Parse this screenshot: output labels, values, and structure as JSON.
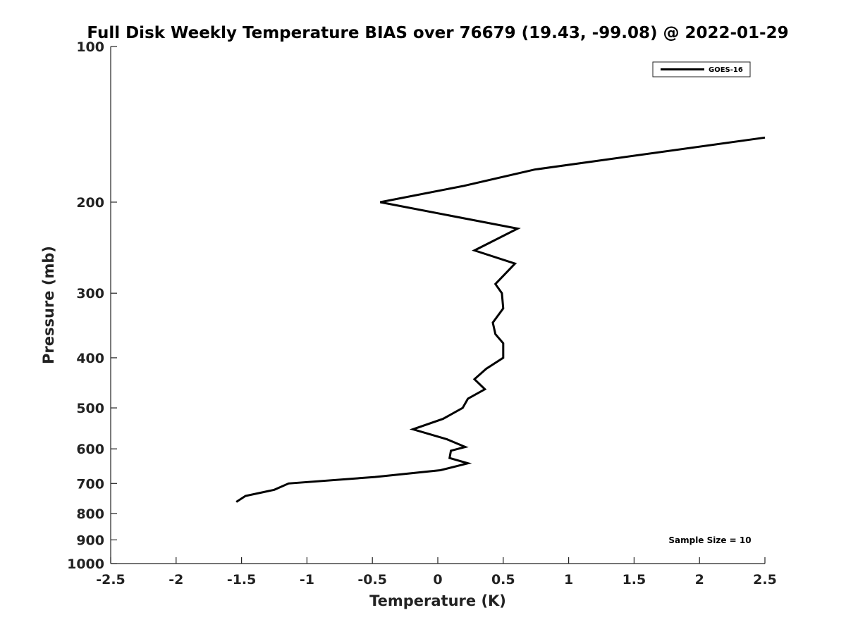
{
  "chart_data": {
    "type": "line",
    "title": "Full Disk Weekly Temperature BIAS over 76679 (19.43, -99.08) @ 2022-01-29",
    "xlabel": "Temperature (K)",
    "ylabel": "Pressure (mb)",
    "xlim": [
      -2.5,
      2.5
    ],
    "ylim": [
      1000,
      100
    ],
    "y_scale": "log",
    "y_reversed": true,
    "grid": false,
    "x_ticks": [
      -2.5,
      -2,
      -1.5,
      -1,
      -0.5,
      0,
      0.5,
      1,
      1.5,
      2,
      2.5
    ],
    "x_tick_labels": [
      "-2.5",
      "-2",
      "-1.5",
      "-1",
      "-0.5",
      "0",
      "0.5",
      "1",
      "1.5",
      "2",
      "2.5"
    ],
    "y_ticks": [
      100,
      200,
      300,
      400,
      500,
      600,
      700,
      800,
      900,
      1000
    ],
    "y_tick_labels": [
      "100",
      "200",
      "300",
      "400",
      "500",
      "600",
      "700",
      "800",
      "900",
      "1000"
    ],
    "legend_position": "top-right",
    "annotation": "Sample Size = 10",
    "series": [
      {
        "name": "GOES-16",
        "color": "#000000",
        "points": [
          {
            "x": 2.5,
            "y": 150
          },
          {
            "x": 0.74,
            "y": 173
          },
          {
            "x": 0.2,
            "y": 186
          },
          {
            "x": -0.44,
            "y": 200
          },
          {
            "x": 0.61,
            "y": 225
          },
          {
            "x": 0.28,
            "y": 248
          },
          {
            "x": 0.59,
            "y": 263
          },
          {
            "x": 0.44,
            "y": 288
          },
          {
            "x": 0.49,
            "y": 300
          },
          {
            "x": 0.5,
            "y": 321
          },
          {
            "x": 0.42,
            "y": 342
          },
          {
            "x": 0.44,
            "y": 360
          },
          {
            "x": 0.5,
            "y": 375
          },
          {
            "x": 0.5,
            "y": 400
          },
          {
            "x": 0.37,
            "y": 420
          },
          {
            "x": 0.28,
            "y": 440
          },
          {
            "x": 0.36,
            "y": 460
          },
          {
            "x": 0.23,
            "y": 480
          },
          {
            "x": 0.19,
            "y": 500
          },
          {
            "x": 0.04,
            "y": 525
          },
          {
            "x": -0.19,
            "y": 550
          },
          {
            "x": 0.07,
            "y": 575
          },
          {
            "x": 0.21,
            "y": 595
          },
          {
            "x": 0.1,
            "y": 605
          },
          {
            "x": 0.09,
            "y": 625
          },
          {
            "x": 0.23,
            "y": 640
          },
          {
            "x": 0.02,
            "y": 660
          },
          {
            "x": -0.48,
            "y": 680
          },
          {
            "x": -1.14,
            "y": 700
          },
          {
            "x": -1.25,
            "y": 720
          },
          {
            "x": -1.47,
            "y": 740
          },
          {
            "x": -1.54,
            "y": 760
          }
        ]
      }
    ]
  }
}
